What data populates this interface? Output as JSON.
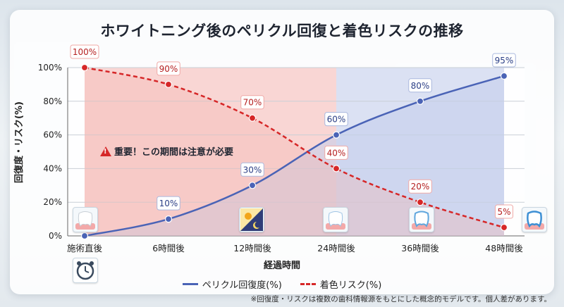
{
  "title": "ホワイトニング後のペリクル回復と着色リスクの推移",
  "annotation": "重要！この期間は注意が必要",
  "footnote": "※回復度・リスクは複数の歯科情報源をもとにした概念的モデルです。個人差があります。",
  "colors": {
    "recovery": "#4a63b6",
    "risk": "#d62728",
    "risk_region": "#f4b4b0",
    "recovery_region": "#c3cdeb"
  },
  "icons": [
    "tooth-icon",
    "alarm-clock-icon",
    "day-night-icon",
    "tooth-icon",
    "sparkling-tooth-icon",
    "sparkling-tooth-icon"
  ],
  "chart_data": {
    "type": "line",
    "categories": [
      "施術直後",
      "6時間後",
      "12時間後",
      "24時間後",
      "36時間後",
      "48時間後"
    ],
    "xlabel": "経過時間",
    "ylabel": "回復度・リスク(%)",
    "ylim": [
      0,
      100
    ],
    "yticks": [
      "0%",
      "20%",
      "40%",
      "60%",
      "80%",
      "100%"
    ],
    "grid": true,
    "legend": "bottom",
    "series": [
      {
        "name": "ペリクル回復度(%)",
        "style": "solid",
        "values": [
          0,
          10,
          30,
          60,
          80,
          95
        ],
        "labels": [
          "",
          "10%",
          "30%",
          "60%",
          "80%",
          "95%"
        ]
      },
      {
        "name": "着色リスク(%)",
        "style": "dashed",
        "values": [
          100,
          90,
          70,
          40,
          20,
          5
        ],
        "labels": [
          "100%",
          "90%",
          "70%",
          "40%",
          "20%",
          "5%"
        ]
      }
    ]
  }
}
